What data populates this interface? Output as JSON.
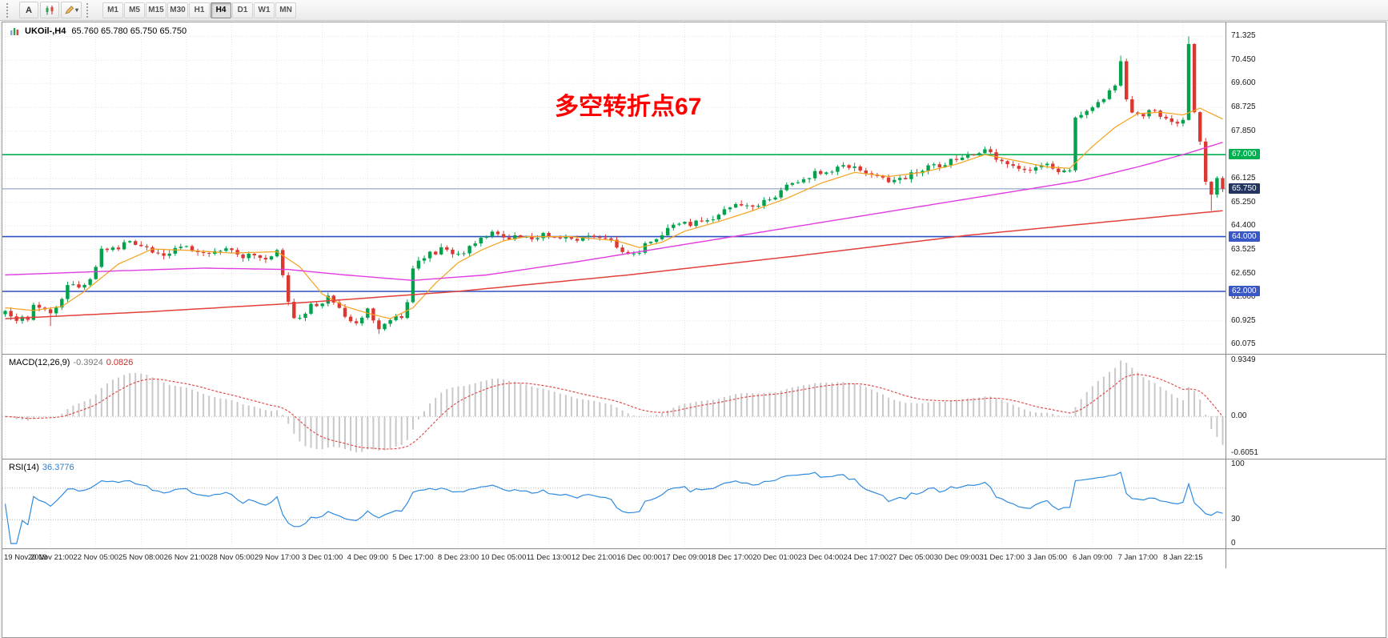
{
  "toolbar": {
    "buttons": [
      {
        "label": "A"
      }
    ],
    "timeframes": [
      "M1",
      "M5",
      "M15",
      "M30",
      "H1",
      "H4",
      "D1",
      "W1",
      "MN"
    ],
    "active_timeframe": "H4"
  },
  "chart": {
    "title_symbol": "UKOil-,H4",
    "title_ohlc": "65.760 65.780 65.750 65.750",
    "annotation": "多空转折点67",
    "annotation_color": "#ff0000",
    "price_ticks": [
      71.325,
      70.45,
      69.6,
      68.725,
      67.85,
      66.125,
      65.25,
      64.4,
      63.525,
      62.65,
      61.8,
      60.925,
      60.075
    ],
    "price_badges": [
      {
        "label": "67.000",
        "price": 67.0,
        "color": "#00b050"
      },
      {
        "label": "65.750",
        "price": 65.75,
        "color": "#24355f"
      },
      {
        "label": "64.000",
        "price": 64.0,
        "color": "#3a57c6"
      },
      {
        "label": "62.000",
        "price": 62.0,
        "color": "#3a57c6"
      }
    ],
    "hlines": [
      {
        "price": 67.0,
        "color": "#00b050",
        "width": 1.6
      },
      {
        "price": 65.75,
        "color": "#7a95bd",
        "width": 1
      },
      {
        "price": 64.0,
        "color": "#2e4fc0",
        "width": 1.6
      },
      {
        "price": 62.0,
        "color": "#2e4fc0",
        "width": 1.6
      }
    ]
  },
  "chart_data": {
    "type": "candlestick",
    "symbol": "UKOil-",
    "timeframe": "H4",
    "current_ohlc": {
      "open": "65.760",
      "high": "65.780",
      "low": "65.750",
      "close": "65.750"
    },
    "candles": 216,
    "seed": 13,
    "noise": 0.1,
    "price_scale_range": {
      "min": 59.95,
      "max": 71.6
    },
    "colors": {
      "up": "#00a24c",
      "down": "#dc3832",
      "macd_bar": "#c8c8c8",
      "macd_signal": "#e04040",
      "rsi_line": "#2f8be0"
    },
    "close_anchors": [
      [
        0,
        61.25
      ],
      [
        2,
        60.95
      ],
      [
        4,
        61.05
      ],
      [
        5,
        61.6
      ],
      [
        7,
        61.3
      ],
      [
        8,
        61.1
      ],
      [
        10,
        61.7
      ],
      [
        11,
        62.3
      ],
      [
        13,
        62.2
      ],
      [
        15,
        62.45
      ],
      [
        17,
        63.5
      ],
      [
        20,
        63.6
      ],
      [
        22,
        63.8
      ],
      [
        24,
        63.6
      ],
      [
        27,
        63.35
      ],
      [
        30,
        63.5
      ],
      [
        32,
        63.6
      ],
      [
        34,
        63.35
      ],
      [
        36,
        63.3
      ],
      [
        38,
        63.5
      ],
      [
        40,
        63.45
      ],
      [
        42,
        63.3
      ],
      [
        44,
        63.4
      ],
      [
        46,
        63.25
      ],
      [
        48,
        63.5
      ],
      [
        49,
        62.6
      ],
      [
        50,
        61.6
      ],
      [
        51,
        61.0
      ],
      [
        53,
        61.2
      ],
      [
        54,
        61.45
      ],
      [
        56,
        61.6
      ],
      [
        57,
        61.8
      ],
      [
        59,
        61.3
      ],
      [
        60,
        61.15
      ],
      [
        62,
        60.85
      ],
      [
        63,
        61.1
      ],
      [
        64,
        61.35
      ],
      [
        65,
        60.9
      ],
      [
        66,
        60.6
      ],
      [
        67,
        60.8
      ],
      [
        68,
        61.05
      ],
      [
        70,
        61.0
      ],
      [
        71,
        61.7
      ],
      [
        72,
        62.9
      ],
      [
        73,
        63.1
      ],
      [
        74,
        63.3
      ],
      [
        76,
        63.45
      ],
      [
        77,
        63.55
      ],
      [
        79,
        63.4
      ],
      [
        80,
        63.3
      ],
      [
        82,
        63.6
      ],
      [
        83,
        63.85
      ],
      [
        85,
        64.0
      ],
      [
        86,
        64.1
      ],
      [
        88,
        64.05
      ],
      [
        89,
        63.95
      ],
      [
        91,
        64.0
      ],
      [
        92,
        63.95
      ],
      [
        94,
        64.0
      ],
      [
        95,
        64.1
      ],
      [
        97,
        64.0
      ],
      [
        98,
        63.95
      ],
      [
        100,
        64.0
      ],
      [
        101,
        63.9
      ],
      [
        103,
        64.0
      ],
      [
        104,
        64.05
      ],
      [
        106,
        64.0
      ],
      [
        107,
        63.9
      ],
      [
        108,
        63.6
      ],
      [
        109,
        63.35
      ],
      [
        111,
        63.3
      ],
      [
        112,
        63.5
      ],
      [
        114,
        63.9
      ],
      [
        116,
        64.1
      ],
      [
        117,
        64.3
      ],
      [
        119,
        64.4
      ],
      [
        120,
        64.45
      ],
      [
        122,
        64.5
      ],
      [
        123,
        64.55
      ],
      [
        125,
        64.7
      ],
      [
        126,
        64.85
      ],
      [
        128,
        65.05
      ],
      [
        129,
        65.2
      ],
      [
        131,
        65.15
      ],
      [
        132,
        65.1
      ],
      [
        134,
        65.3
      ],
      [
        135,
        65.4
      ],
      [
        137,
        65.6
      ],
      [
        138,
        65.8
      ],
      [
        140,
        66.0
      ],
      [
        141,
        66.1
      ],
      [
        143,
        66.3
      ],
      [
        144,
        66.35
      ],
      [
        146,
        66.45
      ],
      [
        147,
        66.5
      ],
      [
        149,
        66.55
      ],
      [
        150,
        66.5
      ],
      [
        152,
        66.3
      ],
      [
        153,
        66.2
      ],
      [
        155,
        66.1
      ],
      [
        156,
        66.05
      ],
      [
        158,
        66.1
      ],
      [
        159,
        66.15
      ],
      [
        161,
        66.4
      ],
      [
        162,
        66.5
      ],
      [
        164,
        66.55
      ],
      [
        165,
        66.6
      ],
      [
        167,
        66.8
      ],
      [
        168,
        66.85
      ],
      [
        170,
        66.95
      ],
      [
        171,
        67.0
      ],
      [
        173,
        67.25
      ],
      [
        174,
        67.1
      ],
      [
        175,
        66.9
      ],
      [
        177,
        66.6
      ],
      [
        178,
        66.55
      ],
      [
        180,
        66.45
      ],
      [
        181,
        66.45
      ],
      [
        183,
        66.55
      ],
      [
        184,
        66.6
      ],
      [
        185,
        66.5
      ],
      [
        186,
        66.4
      ],
      [
        188,
        66.35
      ],
      [
        189,
        68.4
      ],
      [
        190,
        68.5
      ],
      [
        191,
        68.6
      ],
      [
        192,
        68.75
      ],
      [
        193,
        68.9
      ],
      [
        194,
        69.1
      ],
      [
        195,
        69.35
      ],
      [
        196,
        69.6
      ],
      [
        197,
        70.35
      ],
      [
        198,
        69.0
      ],
      [
        199,
        68.6
      ],
      [
        200,
        68.4
      ],
      [
        201,
        68.5
      ],
      [
        202,
        68.6
      ],
      [
        203,
        68.55
      ],
      [
        204,
        68.35
      ],
      [
        205,
        68.3
      ],
      [
        206,
        68.25
      ],
      [
        207,
        68.2
      ],
      [
        208,
        68.3
      ],
      [
        209,
        71.0
      ],
      [
        210,
        68.6
      ],
      [
        211,
        67.4
      ],
      [
        212,
        66.1
      ],
      [
        213,
        65.45
      ],
      [
        214,
        66.05
      ],
      [
        215,
        65.75
      ]
    ],
    "high_overrides": [
      [
        197,
        70.62
      ],
      [
        209,
        71.325
      ]
    ],
    "low_overrides": [
      [
        8,
        60.73
      ],
      [
        66,
        60.45
      ],
      [
        213,
        64.95
      ]
    ],
    "moving_averages": [
      {
        "name": "ma-fast",
        "color": "#f5a21d",
        "width": 1.2,
        "anchors": [
          [
            0,
            61.4
          ],
          [
            5,
            61.3
          ],
          [
            10,
            61.45
          ],
          [
            14,
            62.0
          ],
          [
            20,
            63.0
          ],
          [
            26,
            63.55
          ],
          [
            32,
            63.5
          ],
          [
            40,
            63.4
          ],
          [
            48,
            63.45
          ],
          [
            52,
            62.9
          ],
          [
            56,
            61.9
          ],
          [
            60,
            61.45
          ],
          [
            64,
            61.2
          ],
          [
            68,
            61.0
          ],
          [
            72,
            61.4
          ],
          [
            76,
            62.3
          ],
          [
            80,
            63.05
          ],
          [
            84,
            63.5
          ],
          [
            88,
            63.85
          ],
          [
            92,
            64.0
          ],
          [
            100,
            64.0
          ],
          [
            108,
            63.85
          ],
          [
            112,
            63.6
          ],
          [
            116,
            63.8
          ],
          [
            120,
            64.2
          ],
          [
            126,
            64.55
          ],
          [
            132,
            64.95
          ],
          [
            138,
            65.4
          ],
          [
            144,
            65.95
          ],
          [
            150,
            66.35
          ],
          [
            156,
            66.2
          ],
          [
            162,
            66.35
          ],
          [
            168,
            66.65
          ],
          [
            173,
            67.0
          ],
          [
            178,
            66.8
          ],
          [
            184,
            66.55
          ],
          [
            188,
            66.5
          ],
          [
            192,
            67.3
          ],
          [
            196,
            68.0
          ],
          [
            200,
            68.5
          ],
          [
            204,
            68.55
          ],
          [
            208,
            68.45
          ],
          [
            211,
            68.7
          ],
          [
            215,
            68.3
          ]
        ]
      },
      {
        "name": "ma-medium",
        "color": "#e03ee0",
        "width": 1.4,
        "anchors": [
          [
            0,
            62.6
          ],
          [
            20,
            62.75
          ],
          [
            35,
            62.85
          ],
          [
            50,
            62.8
          ],
          [
            60,
            62.6
          ],
          [
            72,
            62.4
          ],
          [
            85,
            62.6
          ],
          [
            100,
            63.05
          ],
          [
            115,
            63.55
          ],
          [
            130,
            64.05
          ],
          [
            145,
            64.55
          ],
          [
            160,
            65.05
          ],
          [
            175,
            65.55
          ],
          [
            190,
            66.05
          ],
          [
            200,
            66.55
          ],
          [
            208,
            67.0
          ],
          [
            215,
            67.45
          ]
        ]
      },
      {
        "name": "ma-slow",
        "color": "#e3403a",
        "width": 1.5,
        "anchors": [
          [
            0,
            61.0
          ],
          [
            25,
            61.25
          ],
          [
            50,
            61.55
          ],
          [
            80,
            62.0
          ],
          [
            110,
            62.6
          ],
          [
            140,
            63.3
          ],
          [
            170,
            64.05
          ],
          [
            195,
            64.55
          ],
          [
            215,
            64.95
          ]
        ]
      }
    ]
  },
  "macd": {
    "label": "MACD(12,26,9)",
    "value": "-0.3924",
    "signal": "0.0826",
    "ticks": [
      {
        "text": "0.9349",
        "value": 0.9349
      },
      {
        "text": "0.00",
        "value": 0
      },
      {
        "text": "-0.6051",
        "value": -0.6051
      }
    ]
  },
  "rsi": {
    "label": "RSI(14)",
    "value": "36.3776",
    "levels": [
      70,
      30
    ],
    "ticks": [
      {
        "text": "100",
        "value": 100
      },
      {
        "text": "30",
        "value": 30
      },
      {
        "text": "0",
        "value": 0
      }
    ]
  },
  "time_axis": {
    "every": 8,
    "labels": [
      "19 Nov 2019",
      "20 Nov 21:00",
      "22 Nov 05:00",
      "25 Nov 08:00",
      "26 Nov 21:00",
      "28 Nov 05:00",
      "29 Nov 17:00",
      "3 Dec 01:00",
      "4 Dec 09:00",
      "5 Dec 17:00",
      "8 Dec 23:00",
      "10 Dec 05:00",
      "11 Dec 13:00",
      "12 Dec 21:00",
      "16 Dec 00:00",
      "17 Dec 09:00",
      "18 Dec 17:00",
      "20 Dec 01:00",
      "23 Dec 04:00",
      "24 Dec 17:00",
      "27 Dec 05:00",
      "30 Dec 09:00",
      "31 Dec 17:00",
      "3 Jan 05:00",
      "6 Jan 09:00",
      "7 Jan 17:00",
      "8 Jan 22:15"
    ]
  }
}
